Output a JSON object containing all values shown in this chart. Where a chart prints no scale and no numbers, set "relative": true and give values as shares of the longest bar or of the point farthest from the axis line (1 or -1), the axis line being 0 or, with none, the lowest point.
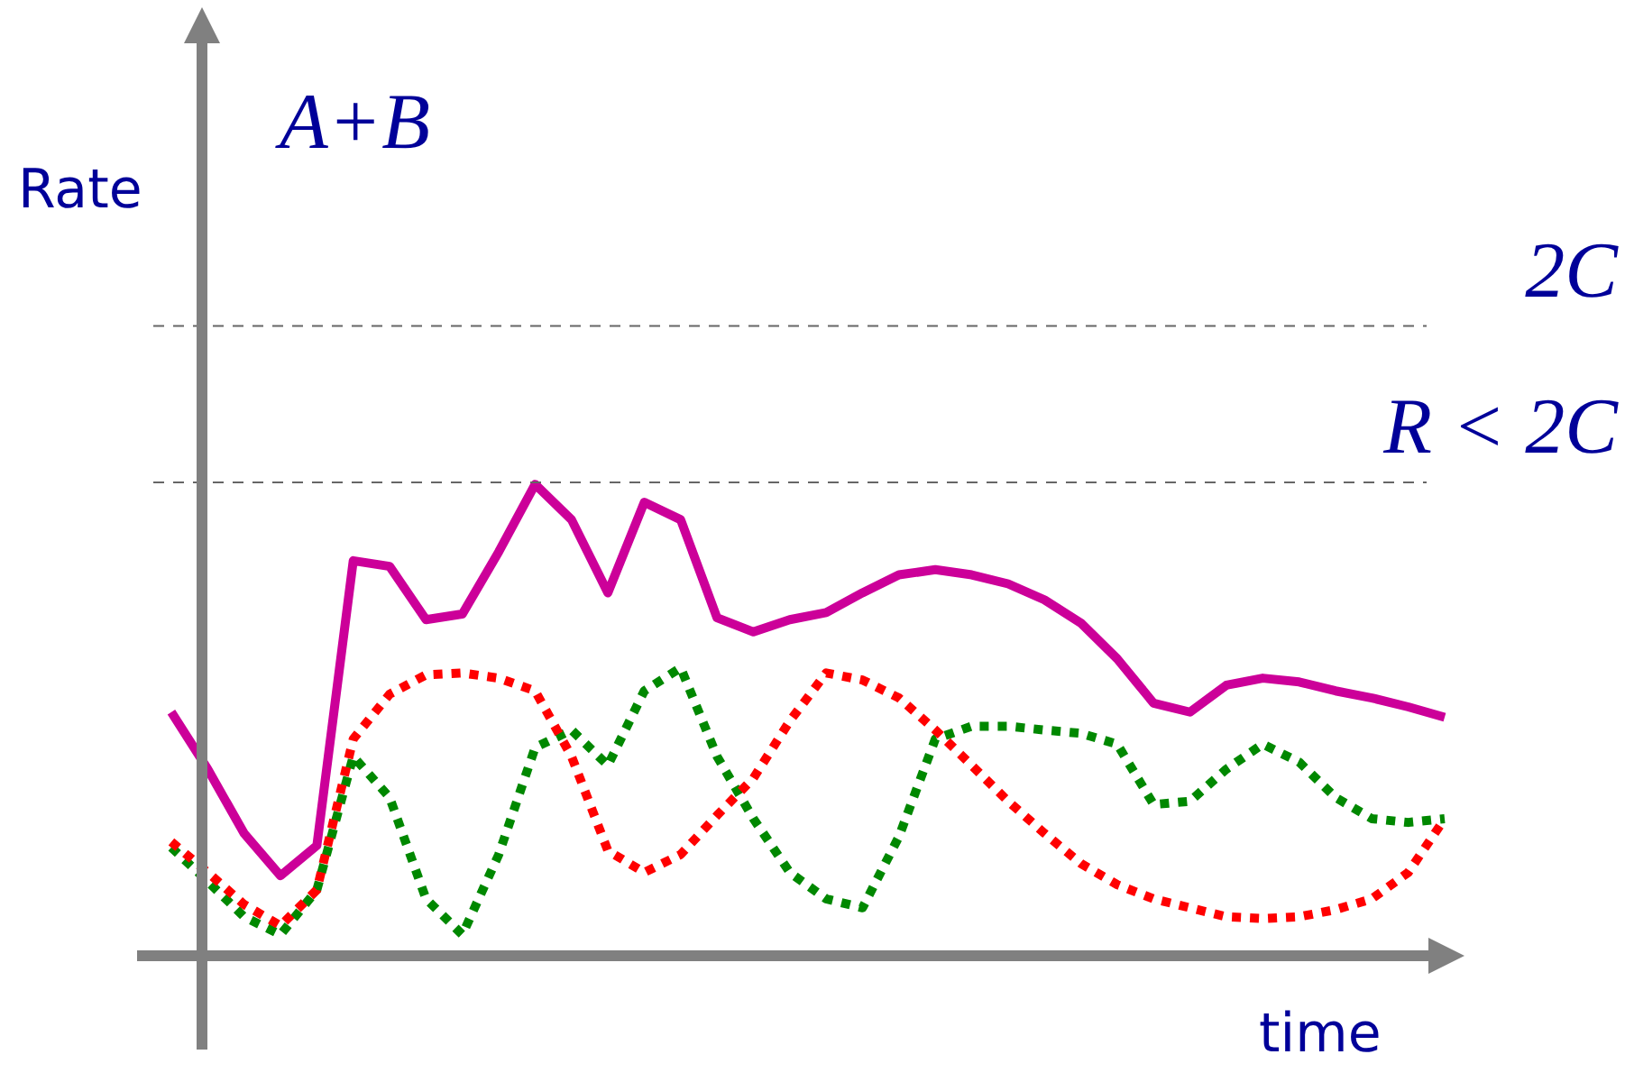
{
  "chart_data": {
    "type": "line",
    "relative": true,
    "xlabel": "time",
    "ylabel": "Rate",
    "annotations": [
      "A+B"
    ],
    "legend": false,
    "marker": "none",
    "categories": [
      null,
      null,
      null,
      null,
      null,
      null,
      null,
      null,
      null,
      null,
      null,
      null,
      null,
      null,
      null,
      null,
      null,
      null,
      null,
      null,
      null,
      null,
      null,
      null,
      null,
      null,
      null,
      null,
      null,
      null,
      null,
      null,
      null,
      null,
      null,
      null
    ],
    "ref_lines": [
      {
        "axis": "y",
        "value": 1.336,
        "label": "2C",
        "color": "#666666",
        "line_style": "dashed"
      },
      {
        "axis": "y",
        "value": 1.004,
        "label": "R < 2C",
        "color": "#666666",
        "line_style": "dashed"
      }
    ],
    "series": [
      {
        "color": "#cc0099",
        "line_style": "solid",
        "values": [
          0.517,
          0.396,
          0.26,
          0.17,
          0.234,
          0.838,
          0.826,
          0.713,
          0.725,
          0.857,
          1.0,
          0.925,
          0.77,
          0.962,
          0.925,
          0.717,
          0.687,
          0.713,
          0.728,
          0.77,
          0.808,
          0.819,
          0.808,
          0.789,
          0.755,
          0.706,
          0.63,
          0.536,
          0.517,
          0.574,
          0.589,
          0.581,
          0.562,
          0.547,
          0.528,
          0.506
        ]
      },
      {
        "color": "#ff0000",
        "line_style": "dotted",
        "values": [
          0.242,
          0.177,
          0.109,
          0.064,
          0.14,
          0.46,
          0.555,
          0.596,
          0.6,
          0.589,
          0.562,
          0.423,
          0.223,
          0.177,
          0.215,
          0.298,
          0.377,
          0.498,
          0.6,
          0.585,
          0.547,
          0.479,
          0.404,
          0.328,
          0.26,
          0.196,
          0.151,
          0.121,
          0.102,
          0.083,
          0.079,
          0.083,
          0.098,
          0.121,
          0.177,
          0.291
        ]
      },
      {
        "color": "#008800",
        "line_style": "dotted",
        "values": [
          0.23,
          0.158,
          0.083,
          0.045,
          0.14,
          0.423,
          0.336,
          0.121,
          0.045,
          0.215,
          0.442,
          0.479,
          0.404,
          0.562,
          0.611,
          0.423,
          0.291,
          0.177,
          0.121,
          0.102,
          0.253,
          0.46,
          0.487,
          0.487,
          0.479,
          0.472,
          0.449,
          0.321,
          0.328,
          0.396,
          0.449,
          0.411,
          0.336,
          0.291,
          0.283,
          0.291
        ]
      }
    ]
  }
}
